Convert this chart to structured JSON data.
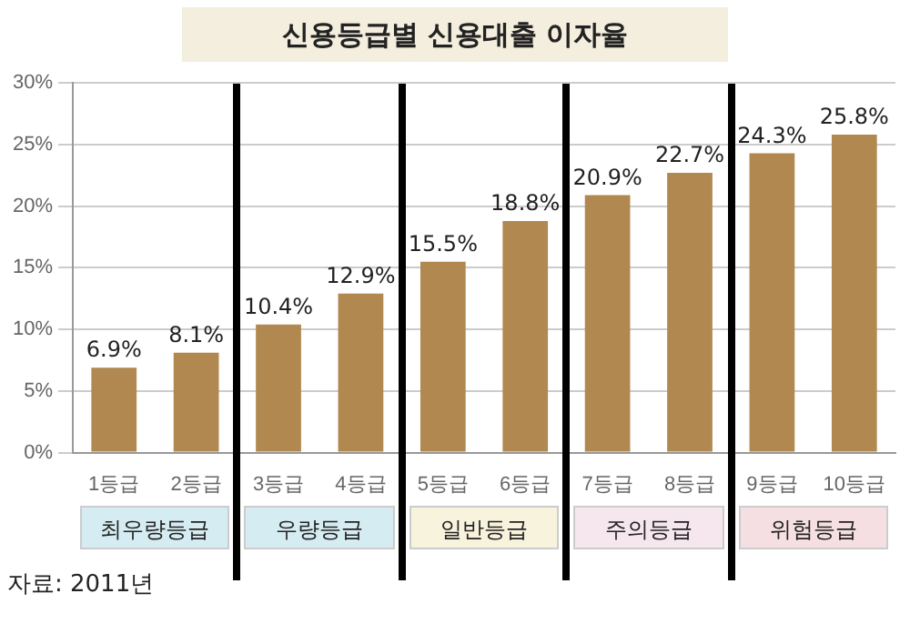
{
  "chart_data": {
    "type": "bar",
    "title": "신용등급별 신용대출 이자율",
    "categories": [
      "1등급",
      "2등급",
      "3등급",
      "4등급",
      "5등급",
      "6등급",
      "7등급",
      "8등급",
      "9등급",
      "10등급"
    ],
    "values": [
      6.9,
      8.1,
      10.4,
      12.9,
      15.5,
      18.8,
      20.9,
      22.7,
      24.3,
      25.8
    ],
    "value_labels": [
      "6.9%",
      "8.1%",
      "10.4%",
      "12.9%",
      "15.5%",
      "18.8%",
      "20.9%",
      "22.7%",
      "24.3%",
      "25.8%"
    ],
    "color": "#b08850",
    "ylim": [
      0,
      30
    ],
    "yticks": [
      {
        "value": 0,
        "label": "0%"
      },
      {
        "value": 5,
        "label": "5%"
      },
      {
        "value": 10,
        "label": "10%"
      },
      {
        "value": 15,
        "label": "15%"
      },
      {
        "value": 20,
        "label": "20%"
      },
      {
        "value": 25,
        "label": "25%"
      },
      {
        "value": 30,
        "label": "30%"
      }
    ],
    "grid": "y",
    "annotations": [
      "최우량등급",
      "우량등급",
      "일반등급",
      "주의등급",
      "위험등급",
      "자료: 2011년"
    ]
  }
}
